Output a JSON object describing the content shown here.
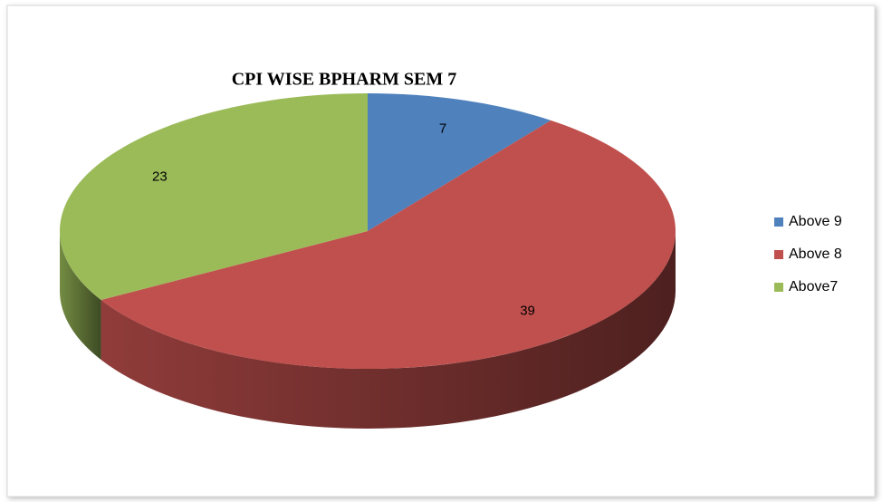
{
  "chart_data": {
    "type": "pie",
    "title": "CPI WISE  BPHARM SEM 7",
    "categories": [
      "Above 9",
      "Above 8",
      "Above7"
    ],
    "values": [
      7,
      39,
      23
    ],
    "colors": [
      "#4f81bd",
      "#c0504d",
      "#9bbb59"
    ],
    "legend": "right"
  }
}
